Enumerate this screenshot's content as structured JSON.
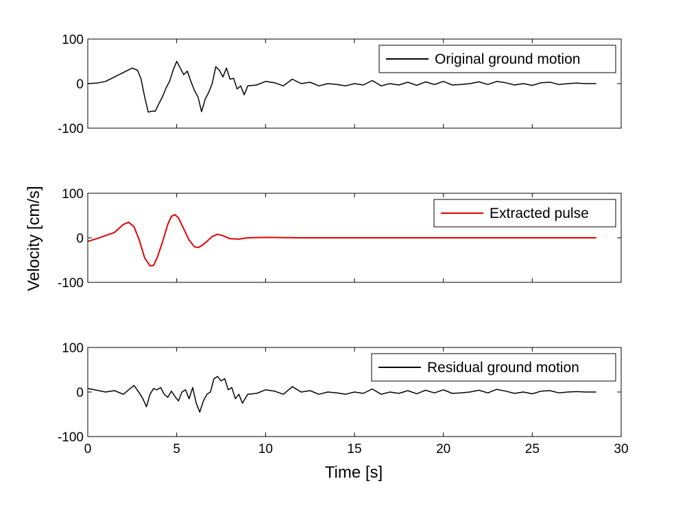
{
  "chart_data": {
    "type": "line",
    "shared_xlabel": "Time [s]",
    "shared_ylabel": "Velocity [cm/s]",
    "xlim": [
      0,
      30
    ],
    "xticks": [
      0,
      5,
      10,
      15,
      20,
      25,
      30
    ],
    "grid": false,
    "legend_placement": "top-right",
    "panels": [
      {
        "series": [
          {
            "name": "Original ground motion",
            "color": "#000000",
            "x": [
              0,
              0.5,
              1.0,
              1.5,
              2.0,
              2.5,
              2.8,
              3.0,
              3.2,
              3.4,
              3.6,
              3.8,
              4.0,
              4.2,
              4.4,
              4.6,
              4.8,
              5.0,
              5.2,
              5.4,
              5.6,
              5.8,
              6.0,
              6.2,
              6.4,
              6.6,
              6.8,
              7.0,
              7.2,
              7.4,
              7.6,
              7.8,
              8.0,
              8.2,
              8.4,
              8.6,
              8.8,
              9.0,
              9.5,
              10.0,
              10.5,
              11.0,
              11.5,
              12.0,
              12.5,
              13.0,
              13.5,
              14.0,
              14.5,
              15.0,
              15.5,
              16.0,
              16.5,
              17.0,
              17.5,
              18.0,
              18.5,
              19.0,
              19.5,
              20.0,
              20.5,
              21.0,
              21.5,
              22.0,
              22.5,
              23.0,
              23.5,
              24.0,
              24.5,
              25.0,
              25.5,
              26.0,
              26.5,
              27.0,
              27.5,
              28.0,
              28.6
            ],
            "y": [
              0,
              1,
              5,
              15,
              25,
              35,
              30,
              10,
              -30,
              -64,
              -62,
              -62,
              -45,
              -30,
              -10,
              5,
              30,
              50,
              35,
              20,
              28,
              5,
              -15,
              -30,
              -63,
              -35,
              -20,
              0,
              38,
              30,
              15,
              35,
              10,
              12,
              -12,
              -5,
              -25,
              -5,
              -3,
              5,
              2,
              -5,
              10,
              0,
              3,
              -5,
              0,
              -2,
              -5,
              0,
              -3,
              7,
              -5,
              0,
              -3,
              3,
              -4,
              4,
              -2,
              5,
              -3,
              -2,
              0,
              4,
              -2,
              5,
              2,
              -3,
              0,
              -4,
              2,
              3,
              -2,
              0,
              1,
              0,
              0
            ]
          }
        ],
        "ylim": [
          -100,
          100
        ],
        "yticks": [
          -100,
          0,
          100
        ]
      },
      {
        "series": [
          {
            "name": "Extracted pulse",
            "color": "#e00000",
            "x": [
              0,
              0.5,
              1.0,
              1.5,
              2.0,
              2.3,
              2.6,
              2.9,
              3.2,
              3.5,
              3.7,
              3.9,
              4.2,
              4.5,
              4.7,
              4.9,
              5.1,
              5.4,
              5.7,
              6.0,
              6.2,
              6.4,
              6.7,
              7.0,
              7.3,
              7.6,
              8.0,
              8.5,
              9.0,
              10,
              12,
              14,
              20,
              28.6
            ],
            "y": [
              -8,
              -2,
              5,
              12,
              30,
              35,
              25,
              -5,
              -45,
              -63,
              -62,
              -45,
              -10,
              30,
              48,
              52,
              45,
              20,
              -5,
              -20,
              -22,
              -18,
              -8,
              3,
              8,
              5,
              -2,
              -3,
              0,
              1,
              0,
              0,
              0,
              0
            ]
          }
        ],
        "ylim": [
          -100,
          100
        ],
        "yticks": [
          -100,
          0,
          100
        ]
      },
      {
        "series": [
          {
            "name": "Residual ground motion",
            "color": "#000000",
            "x": [
              0,
              0.5,
              1.0,
              1.5,
              2.0,
              2.3,
              2.6,
              2.9,
              3.1,
              3.3,
              3.5,
              3.7,
              3.9,
              4.1,
              4.3,
              4.5,
              4.7,
              4.9,
              5.1,
              5.3,
              5.5,
              5.7,
              5.9,
              6.1,
              6.3,
              6.5,
              6.7,
              6.9,
              7.1,
              7.3,
              7.5,
              7.7,
              7.9,
              8.1,
              8.3,
              8.5,
              8.7,
              9.0,
              9.5,
              10.0,
              10.5,
              11.0,
              11.5,
              12.0,
              12.5,
              13.0,
              13.5,
              14.0,
              14.5,
              15.0,
              15.5,
              16.0,
              16.5,
              17.0,
              17.5,
              18.0,
              18.5,
              19.0,
              19.5,
              20.0,
              20.5,
              21.0,
              21.5,
              22.0,
              22.5,
              23.0,
              23.5,
              24.0,
              24.5,
              25.0,
              25.5,
              26.0,
              26.5,
              27.0,
              27.5,
              28.0,
              28.6
            ],
            "y": [
              8,
              4,
              0,
              3,
              -5,
              5,
              15,
              -2,
              -15,
              -33,
              -5,
              8,
              5,
              10,
              -5,
              -12,
              2,
              -10,
              -20,
              0,
              5,
              -15,
              10,
              -25,
              -45,
              -20,
              -5,
              0,
              30,
              35,
              25,
              30,
              5,
              10,
              -15,
              -5,
              -25,
              -5,
              -3,
              5,
              2,
              -5,
              12,
              0,
              3,
              -5,
              0,
              -2,
              -5,
              0,
              -3,
              7,
              -5,
              0,
              -3,
              3,
              -4,
              4,
              -2,
              5,
              -3,
              -2,
              0,
              4,
              -2,
              6,
              2,
              -3,
              0,
              -4,
              2,
              3,
              -2,
              0,
              1,
              0,
              0
            ]
          }
        ],
        "ylim": [
          -100,
          100
        ],
        "yticks": [
          -100,
          0,
          100
        ]
      }
    ]
  }
}
